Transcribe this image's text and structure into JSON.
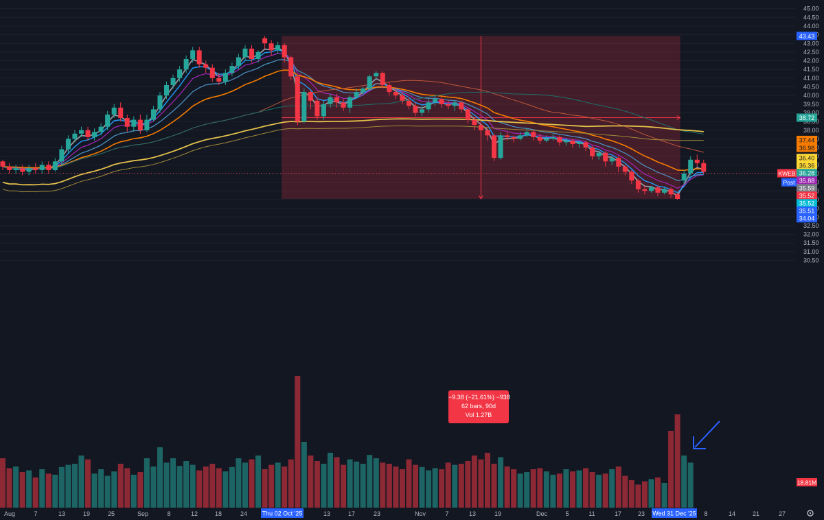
{
  "chart_data": {
    "type": "candlestick",
    "symbol": "KWEB",
    "ylim": [
      30.5,
      45.5
    ],
    "price_ticks": [
      "45.00",
      "44.50",
      "44.00",
      "43.50",
      "43.00",
      "42.50",
      "42.00",
      "41.50",
      "41.00",
      "40.50",
      "40.00",
      "39.50",
      "39.00",
      "38.50",
      "38.00",
      "37.50",
      "37.00",
      "36.50",
      "36.00",
      "35.50",
      "35.00",
      "34.50",
      "34.00",
      "33.50",
      "33.00",
      "32.50",
      "32.00",
      "31.50",
      "31.00",
      "30.50"
    ],
    "date_ticks": [
      "Aug",
      "7",
      "13",
      "19",
      "25",
      "Sep",
      "8",
      "12",
      "18",
      "24",
      "13",
      "17",
      "23",
      "Nov",
      "7",
      "13",
      "19",
      "Dec",
      "5",
      "11",
      "17",
      "23",
      "8",
      "14",
      "21",
      "27"
    ],
    "highlighted_dates": {
      "start": "Thu 02 Oct '25",
      "end": "Wed 31 Dec '25"
    },
    "price_labels": [
      {
        "text": "43.43",
        "value": 43.43,
        "color": "#2962ff"
      },
      {
        "text": "38.72",
        "value": 38.72,
        "color": "#26a69a"
      },
      {
        "text": "37.44",
        "value": 37.44,
        "color": "#f57c00"
      },
      {
        "text": "36.98",
        "value": 36.98,
        "color": "#f57c00"
      },
      {
        "text": "36.40",
        "value": 36.4,
        "color": "#fdd835"
      },
      {
        "text": "36.36",
        "value": 36.36,
        "color": "#fdd835"
      },
      {
        "text": "36.28",
        "value": 36.28,
        "color": "#26a69a"
      },
      {
        "text": "35.88",
        "value": 35.88,
        "color": "#9c27b0"
      },
      {
        "text": "35.59",
        "value": 35.59,
        "color": "#787b86"
      },
      {
        "text": "35.52",
        "value": 35.52,
        "color": "#f23645"
      },
      {
        "text": "35.52",
        "value": 35.52,
        "color": "#00bcd4"
      },
      {
        "text": "35.51",
        "value": 35.51,
        "color": "#2962ff"
      },
      {
        "text": "34.04",
        "value": 34.04,
        "color": "#2962ff"
      }
    ],
    "last_price": {
      "symbol_tag": "KWEB",
      "post_tag": "Post",
      "value": 35.52
    },
    "volume_label": "18.81M",
    "measure": {
      "from_price": 43.43,
      "to_price": 34.04,
      "line1": "−9.38 (−21.61%) −938",
      "line2": "62 bars, 90d",
      "line3": "Vol 1.27B"
    },
    "candles": [
      [
        36.2,
        35.9,
        36.3,
        35.7
      ],
      [
        35.9,
        35.7,
        36.1,
        35.5
      ],
      [
        35.7,
        35.8,
        36.0,
        35.5
      ],
      [
        35.8,
        35.6,
        36.0,
        35.4
      ],
      [
        35.6,
        35.8,
        36.0,
        35.4
      ],
      [
        35.8,
        35.7,
        36.1,
        35.5
      ],
      [
        35.7,
        36.0,
        36.2,
        35.5
      ],
      [
        36.0,
        35.7,
        36.2,
        35.5
      ],
      [
        35.7,
        36.2,
        36.4,
        35.6
      ],
      [
        36.2,
        36.9,
        37.1,
        36.0
      ],
      [
        36.9,
        37.5,
        37.7,
        36.7
      ],
      [
        37.5,
        37.8,
        38.0,
        37.3
      ],
      [
        37.8,
        38.0,
        38.2,
        37.6
      ],
      [
        38.0,
        37.6,
        38.2,
        37.4
      ],
      [
        37.6,
        37.9,
        38.1,
        37.4
      ],
      [
        37.9,
        38.2,
        38.4,
        37.7
      ],
      [
        38.2,
        38.9,
        39.1,
        38.0
      ],
      [
        38.9,
        39.3,
        39.5,
        38.7
      ],
      [
        39.3,
        38.7,
        39.6,
        38.5
      ],
      [
        38.7,
        38.2,
        38.9,
        37.9
      ],
      [
        38.2,
        38.6,
        38.8,
        37.9
      ],
      [
        38.6,
        38.0,
        38.9,
        37.8
      ],
      [
        38.0,
        38.6,
        38.9,
        37.9
      ],
      [
        38.6,
        39.2,
        39.4,
        38.5
      ],
      [
        39.2,
        40.0,
        40.2,
        39.0
      ],
      [
        40.0,
        40.6,
        40.8,
        39.8
      ],
      [
        40.6,
        41.0,
        41.2,
        40.4
      ],
      [
        41.0,
        41.5,
        41.7,
        40.8
      ],
      [
        41.5,
        42.1,
        42.3,
        41.3
      ],
      [
        42.1,
        42.6,
        42.8,
        41.9
      ],
      [
        42.6,
        41.8,
        42.8,
        41.6
      ],
      [
        41.8,
        41.6,
        42.0,
        41.3
      ],
      [
        41.6,
        41.0,
        41.8,
        40.8
      ],
      [
        41.0,
        40.8,
        41.3,
        40.6
      ],
      [
        40.8,
        41.3,
        41.5,
        40.6
      ],
      [
        41.3,
        41.7,
        41.9,
        41.1
      ],
      [
        41.7,
        42.2,
        42.4,
        41.5
      ],
      [
        42.2,
        42.7,
        42.9,
        42.0
      ],
      [
        42.7,
        42.1,
        42.9,
        41.9
      ],
      [
        42.1,
        42.5,
        42.6,
        41.9
      ],
      [
        43.3,
        43.0,
        43.43,
        42.7
      ],
      [
        43.0,
        42.6,
        43.2,
        42.3
      ],
      [
        42.6,
        42.9,
        43.1,
        42.4
      ],
      [
        42.9,
        42.2,
        43.0,
        41.9
      ],
      [
        42.2,
        41.1,
        42.3,
        40.9
      ],
      [
        41.1,
        38.5,
        41.2,
        38.3
      ],
      [
        38.5,
        40.2,
        40.4,
        38.4
      ],
      [
        40.2,
        39.7,
        40.3,
        39.2
      ],
      [
        39.7,
        38.8,
        39.9,
        38.6
      ],
      [
        38.8,
        39.5,
        39.7,
        38.6
      ],
      [
        39.5,
        39.9,
        40.1,
        39.3
      ],
      [
        39.9,
        39.6,
        40.1,
        39.3
      ],
      [
        39.6,
        39.3,
        39.8,
        39.1
      ],
      [
        39.3,
        39.9,
        40.0,
        39.0
      ],
      [
        39.9,
        40.2,
        40.4,
        39.8
      ],
      [
        40.2,
        40.4,
        40.5,
        40.0
      ],
      [
        40.4,
        41.1,
        41.2,
        40.3
      ],
      [
        41.1,
        41.3,
        41.4,
        40.9
      ],
      [
        41.3,
        40.6,
        41.4,
        40.4
      ],
      [
        40.6,
        40.2,
        40.8,
        40.0
      ],
      [
        40.2,
        40.0,
        40.4,
        39.8
      ],
      [
        40.0,
        39.7,
        40.2,
        39.5
      ],
      [
        39.7,
        39.4,
        39.9,
        39.2
      ],
      [
        39.4,
        39.0,
        39.6,
        38.8
      ],
      [
        39.0,
        39.2,
        39.4,
        38.8
      ],
      [
        39.2,
        39.6,
        39.8,
        39.0
      ],
      [
        39.6,
        39.8,
        40.0,
        39.4
      ],
      [
        39.8,
        39.5,
        39.9,
        39.3
      ],
      [
        39.5,
        39.4,
        39.7,
        39.2
      ],
      [
        39.4,
        39.6,
        39.7,
        39.1
      ],
      [
        39.6,
        39.2,
        39.7,
        39.0
      ],
      [
        39.2,
        38.6,
        39.3,
        38.4
      ],
      [
        38.6,
        38.3,
        38.7,
        38.0
      ],
      [
        38.3,
        38.0,
        38.5,
        37.7
      ],
      [
        38.0,
        37.7,
        38.1,
        37.4
      ],
      [
        37.7,
        36.4,
        37.8,
        36.2
      ],
      [
        36.4,
        37.7,
        37.9,
        36.3
      ],
      [
        37.7,
        37.6,
        37.9,
        37.4
      ],
      [
        37.6,
        37.5,
        37.7,
        37.3
      ],
      [
        37.5,
        37.7,
        37.9,
        37.4
      ],
      [
        37.7,
        37.9,
        38.1,
        37.6
      ],
      [
        37.9,
        37.6,
        38.0,
        37.4
      ],
      [
        37.6,
        37.4,
        37.8,
        37.2
      ],
      [
        37.4,
        37.5,
        37.7,
        37.3
      ],
      [
        37.5,
        37.6,
        37.8,
        37.4
      ],
      [
        37.6,
        37.3,
        37.7,
        37.1
      ],
      [
        37.3,
        37.4,
        37.5,
        37.1
      ],
      [
        37.4,
        37.2,
        37.5,
        37.0
      ],
      [
        37.2,
        37.3,
        37.4,
        37.0
      ],
      [
        37.3,
        37.0,
        37.4,
        36.8
      ],
      [
        37.0,
        36.5,
        37.1,
        36.3
      ],
      [
        36.5,
        36.7,
        36.8,
        36.3
      ],
      [
        36.7,
        36.2,
        36.8,
        35.9
      ],
      [
        36.2,
        36.4,
        36.5,
        36.0
      ],
      [
        36.4,
        35.9,
        36.5,
        35.6
      ],
      [
        35.9,
        35.6,
        36.0,
        35.4
      ],
      [
        35.6,
        35.1,
        35.7,
        34.9
      ],
      [
        35.1,
        34.6,
        35.2,
        34.4
      ],
      [
        34.6,
        34.5,
        34.8,
        34.3
      ],
      [
        34.5,
        34.7,
        34.8,
        34.4
      ],
      [
        34.7,
        34.4,
        34.8,
        34.2
      ],
      [
        34.4,
        34.6,
        34.7,
        34.3
      ],
      [
        34.6,
        34.3,
        34.7,
        34.1
      ],
      [
        34.3,
        34.04,
        34.4,
        34.0
      ],
      [
        35.1,
        35.5,
        35.7,
        34.9
      ],
      [
        35.5,
        36.3,
        36.5,
        35.4
      ],
      [
        36.3,
        36.1,
        36.6,
        35.9
      ],
      [
        36.1,
        35.6,
        36.3,
        35.5
      ]
    ],
    "volumes": [
      0.9,
      0.72,
      0.75,
      0.65,
      0.68,
      0.55,
      0.7,
      0.62,
      0.6,
      0.74,
      0.78,
      0.8,
      0.95,
      0.88,
      0.62,
      0.7,
      0.58,
      0.66,
      0.8,
      0.72,
      0.6,
      0.65,
      0.9,
      0.75,
      1.1,
      0.82,
      0.9,
      0.76,
      0.85,
      0.78,
      0.68,
      0.75,
      0.8,
      0.72,
      0.66,
      0.74,
      0.9,
      0.82,
      0.88,
      0.95,
      0.7,
      0.78,
      0.82,
      0.75,
      0.88,
      2.4,
      1.2,
      0.95,
      0.85,
      0.8,
      1.0,
      0.92,
      0.78,
      0.88,
      0.84,
      0.8,
      0.96,
      0.9,
      0.82,
      0.8,
      0.75,
      0.7,
      0.88,
      0.78,
      0.74,
      0.68,
      0.72,
      0.7,
      0.82,
      0.78,
      0.8,
      0.85,
      0.95,
      0.88,
      1.0,
      0.8,
      0.92,
      0.75,
      0.7,
      0.62,
      0.65,
      0.7,
      0.72,
      0.66,
      0.6,
      0.62,
      0.7,
      0.66,
      0.68,
      0.72,
      0.65,
      0.6,
      0.62,
      0.7,
      0.75,
      0.58,
      0.5,
      0.42,
      0.48,
      0.52,
      0.55,
      0.45,
      1.4,
      1.7,
      0.95,
      0.82
    ]
  }
}
